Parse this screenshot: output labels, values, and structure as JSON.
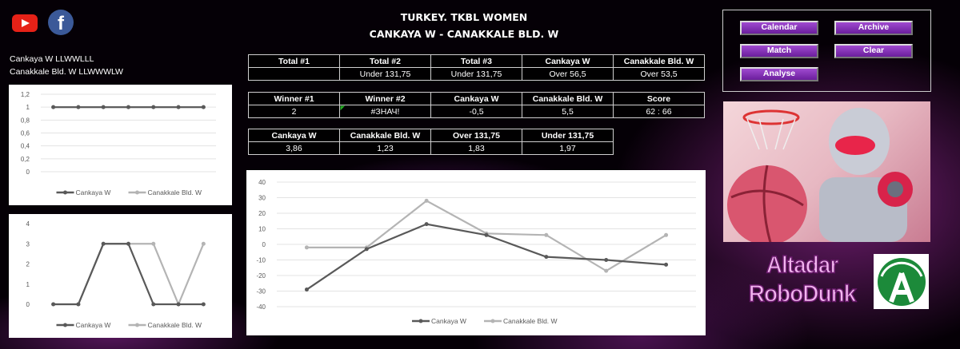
{
  "header": {
    "title": "TURKEY. TKBL WOMEN",
    "match": "CANKAYA W - CANAKKALE BLD. W"
  },
  "social": {
    "icons": [
      "youtube-icon",
      "facebook-icon"
    ]
  },
  "form": {
    "home": "Cankaya W LLWWLLL",
    "away": "Canakkale Bld. W LLWWWLW"
  },
  "totals": {
    "headers": [
      "Total #1",
      "Total #2",
      "Total #3",
      "Cankaya W",
      "Canakkale Bld. W"
    ],
    "values": [
      "",
      "Under 131,75",
      "Under 131,75",
      "Over 56,5",
      "Over 53,5"
    ]
  },
  "winners": {
    "headers": [
      "Winner #1",
      "Winner #2",
      "Cankaya W",
      "Canakkale Bld. W",
      "Score"
    ],
    "values": [
      "2",
      "#ЗНАЧ!",
      "-0,5",
      "5,5",
      "62 : 66"
    ]
  },
  "odds": {
    "headers": [
      "Cankaya W",
      "Canakkale Bld. W",
      "Over 131,75",
      "Under 131,75"
    ],
    "values": [
      "3,86",
      "1,23",
      "1,83",
      "1,97"
    ]
  },
  "buttons": {
    "calendar": "Calendar",
    "archive": "Archive",
    "match": "Match",
    "clear": "Clear",
    "analyse": "Analyse"
  },
  "brand": {
    "line1": "Altadar",
    "line2": "RoboDunk",
    "logo_letter": "A"
  },
  "colors": {
    "series1": "#595959",
    "series2": "#b4b4b4",
    "button": "#7b2cb0"
  },
  "chart_data": [
    {
      "type": "line",
      "ylim": [
        0,
        1.2
      ],
      "yticks": [
        "1,2",
        "1",
        "0,8",
        "0,6",
        "0,4",
        "0,2",
        "0"
      ],
      "ytick_values": [
        1.2,
        1,
        0.8,
        0.6,
        0.4,
        0.2,
        0
      ],
      "series": [
        {
          "name": "Cankaya W",
          "values": [
            1,
            1,
            1,
            1,
            1,
            1,
            1
          ]
        },
        {
          "name": "Canakkale Bld. W",
          "values": [
            1,
            1,
            1,
            1,
            1,
            1,
            1
          ]
        }
      ],
      "legend": "bottom",
      "grid": true
    },
    {
      "type": "line",
      "ylim": [
        0,
        4
      ],
      "yticks": [
        "4",
        "3",
        "2",
        "1",
        "0"
      ],
      "ytick_values": [
        4,
        3,
        2,
        1,
        0
      ],
      "series": [
        {
          "name": "Cankaya W",
          "values": [
            0,
            0,
            3,
            3,
            0,
            0,
            0
          ]
        },
        {
          "name": "Canakkale Bld. W",
          "values": [
            0,
            0,
            3,
            3,
            3,
            0,
            3
          ]
        }
      ],
      "legend": "bottom",
      "grid": false
    },
    {
      "type": "line",
      "ylim": [
        -40,
        40
      ],
      "yticks": [
        "40",
        "30",
        "20",
        "10",
        "0",
        "-10",
        "-20",
        "-30",
        "-40"
      ],
      "ytick_values": [
        40,
        30,
        20,
        10,
        0,
        -10,
        -20,
        -30,
        -40
      ],
      "series": [
        {
          "name": "Cankaya W",
          "values": [
            -29,
            -3,
            13,
            6,
            -8,
            -10,
            -13
          ]
        },
        {
          "name": "Canakkale Bld. W",
          "values": [
            -2,
            -2,
            28,
            7,
            6,
            -17,
            6
          ]
        }
      ],
      "legend": "bottom",
      "grid": true
    }
  ]
}
